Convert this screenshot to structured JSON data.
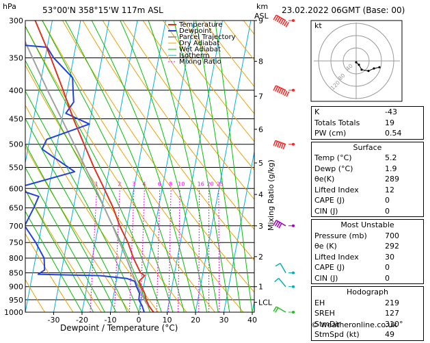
{
  "header": {
    "pressure_unit": "hPa",
    "location": "53°00'N  358°15'W  117m  ASL",
    "height_unit_km": "km",
    "height_unit_asl": "ASL",
    "datetime": "23.02.2022  06GMT  (Base: 00)"
  },
  "legend": [
    "Temperature",
    "Dewpoint",
    "Parcel Trajectory",
    "Dry Adiabat",
    "Wet Adiabat",
    "Isotherm",
    "Mixing Ratio"
  ],
  "colors": {
    "temperature": "#e03020",
    "dewpoint": "#2040e0",
    "parcel": "#a0a0a0",
    "dry_adiabat": "#f0a000",
    "wet_adiabat": "#00c000",
    "isotherm": "#00b0e0",
    "mixing_ratio": "#ff00ff",
    "wind": "#ff2020"
  },
  "chart_data": {
    "type": "skew-t",
    "pressure_levels": [
      300,
      350,
      400,
      450,
      500,
      550,
      600,
      650,
      700,
      750,
      800,
      850,
      900,
      950,
      1000
    ],
    "pressure_labels": [
      "300",
      "350",
      "400",
      "450",
      "500",
      "550",
      "600",
      "650",
      "700",
      "750",
      "800",
      "850",
      "900",
      "950",
      "1000"
    ],
    "temperature_ticks": [
      -30,
      -20,
      -10,
      0,
      10,
      20,
      30,
      40
    ],
    "temperature_tick_labels": [
      "-30",
      "-20",
      "-10",
      "0",
      "10",
      "20",
      "30",
      "40"
    ],
    "xlabel": "Dewpoint / Temperature (°C)",
    "ylabel_right": "Mixing Ratio (g/kg)",
    "height_ticks": [
      {
        "p": 300,
        "label": "9"
      },
      {
        "p": 355,
        "label": "8"
      },
      {
        "p": 410,
        "label": "7"
      },
      {
        "p": 470,
        "label": "6"
      },
      {
        "p": 540,
        "label": "5"
      },
      {
        "p": 615,
        "label": "4"
      },
      {
        "p": 700,
        "label": "3"
      },
      {
        "p": 795,
        "label": "2"
      },
      {
        "p": 900,
        "label": "1"
      },
      {
        "p": 960,
        "label": "LCL"
      }
    ],
    "mixing_ratio_labels": [
      {
        "w": 1,
        "label": "1"
      },
      {
        "w": 2,
        "label": "2"
      },
      {
        "w": 3,
        "label": "3"
      },
      {
        "w": 4,
        "label": "4"
      },
      {
        "w": 6,
        "label": "6"
      },
      {
        "w": 8,
        "label": "8"
      },
      {
        "w": 10,
        "label": "10"
      },
      {
        "w": 16,
        "label": "16"
      },
      {
        "w": 20,
        "label": "20"
      },
      {
        "w": 25,
        "label": "25"
      }
    ],
    "temperature_profile": [
      {
        "p": 1000,
        "t": 5.2
      },
      {
        "p": 975,
        "t": 3.2
      },
      {
        "p": 950,
        "t": 1.8
      },
      {
        "p": 925,
        "t": 0.8
      },
      {
        "p": 900,
        "t": -0.8
      },
      {
        "p": 880,
        "t": -2.0
      },
      {
        "p": 860,
        "t": -0.4
      },
      {
        "p": 850,
        "t": -2.0
      },
      {
        "p": 800,
        "t": -5.5
      },
      {
        "p": 750,
        "t": -8.5
      },
      {
        "p": 700,
        "t": -12.5
      },
      {
        "p": 650,
        "t": -16.0
      },
      {
        "p": 600,
        "t": -20.5
      },
      {
        "p": 550,
        "t": -25.5
      },
      {
        "p": 500,
        "t": -30.5
      },
      {
        "p": 450,
        "t": -36.0
      },
      {
        "p": 400,
        "t": -41.5
      },
      {
        "p": 350,
        "t": -48.0
      },
      {
        "p": 300,
        "t": -56.0
      }
    ],
    "dewpoint_profile": [
      {
        "p": 1000,
        "t": 1.9
      },
      {
        "p": 975,
        "t": 0.8
      },
      {
        "p": 950,
        "t": -0.8
      },
      {
        "p": 925,
        "t": -1.0
      },
      {
        "p": 900,
        "t": -2.5
      },
      {
        "p": 880,
        "t": -3.5
      },
      {
        "p": 870,
        "t": -6.5
      },
      {
        "p": 860,
        "t": -16.0
      },
      {
        "p": 855,
        "t": -38.0
      },
      {
        "p": 840,
        "t": -36.0
      },
      {
        "p": 800,
        "t": -37.0
      },
      {
        "p": 750,
        "t": -41.0
      },
      {
        "p": 700,
        "t": -46.0
      },
      {
        "p": 650,
        "t": -44.0
      },
      {
        "p": 620,
        "t": -43.0
      },
      {
        "p": 600,
        "t": -52.0
      },
      {
        "p": 560,
        "t": -32.0
      },
      {
        "p": 510,
        "t": -45.0
      },
      {
        "p": 490,
        "t": -44.0
      },
      {
        "p": 460,
        "t": -30.0
      },
      {
        "p": 440,
        "t": -39.0
      },
      {
        "p": 420,
        "t": -37.0
      },
      {
        "p": 400,
        "t": -38.0
      },
      {
        "p": 380,
        "t": -39.0
      },
      {
        "p": 350,
        "t": -47.0
      },
      {
        "p": 335,
        "t": -50.0
      },
      {
        "p": 330,
        "t": -65.0
      },
      {
        "p": 310,
        "t": -67.0
      },
      {
        "p": 300,
        "t": -67.0
      }
    ],
    "parcel_profile": [
      {
        "p": 1000,
        "t": 5.2
      },
      {
        "p": 960,
        "t": 1.8
      },
      {
        "p": 900,
        "t": -2.0
      },
      {
        "p": 850,
        "t": -5.0
      },
      {
        "p": 800,
        "t": -8.0
      },
      {
        "p": 700,
        "t": -15.0
      },
      {
        "p": 600,
        "t": -23.5
      },
      {
        "p": 500,
        "t": -34.0
      },
      {
        "p": 400,
        "t": -47.0
      },
      {
        "p": 300,
        "t": -63.0
      }
    ],
    "wind_barbs": [
      {
        "p": 300,
        "dir": 300,
        "speed": 110
      },
      {
        "p": 400,
        "dir": 295,
        "speed": 80
      },
      {
        "p": 500,
        "dir": 290,
        "speed": 60
      },
      {
        "p": 700,
        "dir": 300,
        "speed": 40
      },
      {
        "p": 850,
        "dir": 330,
        "speed": 15
      },
      {
        "p": 900,
        "dir": 320,
        "speed": 15
      },
      {
        "p": 1000,
        "dir": 300,
        "speed": 20
      }
    ]
  },
  "hodograph": {
    "unit": "kt",
    "ring_labels": [
      "120",
      "80",
      "40"
    ],
    "points": [
      [
        0,
        0
      ],
      [
        4,
        -4
      ],
      [
        8,
        -12
      ],
      [
        18,
        -14
      ],
      [
        26,
        -10
      ],
      [
        34,
        -8
      ]
    ]
  },
  "indices": [
    {
      "label": "K",
      "value": "-43"
    },
    {
      "label": "Totals Totals",
      "value": "19"
    },
    {
      "label": "PW (cm)",
      "value": "0.54"
    }
  ],
  "surface": {
    "title": "Surface",
    "rows": [
      {
        "label": "Temp (°C)",
        "value": "5.2"
      },
      {
        "label": "Dewp (°C)",
        "value": "1.9"
      },
      {
        "label": "θe(K)",
        "value": "289"
      },
      {
        "label": "Lifted Index",
        "value": "12"
      },
      {
        "label": "CAPE (J)",
        "value": "0"
      },
      {
        "label": "CIN (J)",
        "value": "0"
      }
    ]
  },
  "most_unstable": {
    "title": "Most Unstable",
    "rows": [
      {
        "label": "Pressure (mb)",
        "value": "700"
      },
      {
        "label": "θe (K)",
        "value": "292"
      },
      {
        "label": "Lifted Index",
        "value": "30"
      },
      {
        "label": "CAPE (J)",
        "value": "0"
      },
      {
        "label": "CIN (J)",
        "value": "0"
      }
    ]
  },
  "hodograph_table": {
    "title": "Hodograph",
    "rows": [
      {
        "label": "EH",
        "value": "219"
      },
      {
        "label": "SREH",
        "value": "127"
      },
      {
        "label": "StmDir",
        "value": "310°"
      },
      {
        "label": "StmSpd (kt)",
        "value": "49"
      }
    ]
  },
  "credit": "© weatheronline.co.uk"
}
